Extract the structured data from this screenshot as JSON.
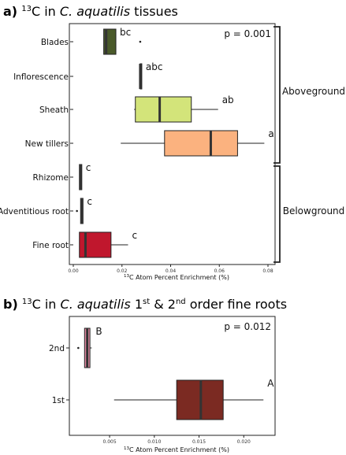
{
  "chart_data": [
    {
      "type": "boxplot",
      "panel_label": "a)",
      "title_sup": "13",
      "title_pre": "C in ",
      "title_species": "C. aquatilis",
      "title_post": " tissues",
      "xlabel_sup": "13",
      "xlabel": "C Atom Percent Enrichment (%)",
      "xlim": [
        0,
        0.08
      ],
      "xticks": [
        {
          "value": 0.0,
          "label": "0.00"
        },
        {
          "value": 0.02,
          "label": "0.02"
        },
        {
          "value": 0.04,
          "label": "0.04"
        },
        {
          "value": 0.06,
          "label": "0.06"
        },
        {
          "value": 0.08,
          "label": "0.08"
        }
      ],
      "p_value": "p = 0.001",
      "groups": [
        {
          "label": "Aboveground",
          "from": 0,
          "to": 3
        },
        {
          "label": "Belowground",
          "from": 4,
          "to": 6
        }
      ],
      "boxes": [
        {
          "category": "Blades",
          "min": 0.0125,
          "q1": 0.0125,
          "median": 0.0135,
          "q3": 0.0175,
          "max": 0.0175,
          "outliers": [
            0.0275
          ],
          "sig": "bc",
          "color": "#4a5a2a"
        },
        {
          "category": "Inflorescence",
          "min": 0.0275,
          "q1": 0.0275,
          "median": 0.0275,
          "q3": 0.0275,
          "max": 0.0275,
          "outliers": [],
          "sig": "abc",
          "color": "#333333"
        },
        {
          "category": "Sheath",
          "min": 0.025,
          "q1": 0.0255,
          "median": 0.0355,
          "q3": 0.0485,
          "max": 0.0595,
          "outliers": [],
          "sig": "ab",
          "color": "#d3e47a"
        },
        {
          "category": "New tillers",
          "min": 0.0195,
          "q1": 0.0375,
          "median": 0.0565,
          "q3": 0.0675,
          "max": 0.0785,
          "outliers": [],
          "sig": "a",
          "color": "#fbb27f"
        },
        {
          "category": "Rhizome",
          "min": 0.0025,
          "q1": 0.0025,
          "median": 0.003,
          "q3": 0.0035,
          "max": 0.0035,
          "outliers": [],
          "sig": "c",
          "color": "#333333"
        },
        {
          "category": "Adventitious root",
          "min": 0.003,
          "q1": 0.003,
          "median": 0.0035,
          "q3": 0.004,
          "max": 0.004,
          "outliers": [
            0.0015
          ],
          "sig": "c",
          "color": "#333333"
        },
        {
          "category": "Fine root",
          "min": 0.0025,
          "q1": 0.0025,
          "median": 0.005,
          "q3": 0.0155,
          "max": 0.0225,
          "outliers": [],
          "sig": "c",
          "color": "#c0172d"
        }
      ]
    },
    {
      "type": "boxplot",
      "panel_label": "b)",
      "title_sup": "13",
      "title_pre": "C in ",
      "title_species": "C. aquatilis",
      "title_post_1": " 1",
      "title_post_1_sup": "st",
      "title_post_2": " & 2",
      "title_post_2_sup": "nd",
      "title_post_3": " order fine roots",
      "xlabel_sup": "13",
      "xlabel": "C Atom Percent Enrichment (%)",
      "xlim": [
        0.0005,
        0.0235
      ],
      "xticks": [
        {
          "value": 0.005,
          "label": "0.005"
        },
        {
          "value": 0.01,
          "label": "0.010"
        },
        {
          "value": 0.015,
          "label": "0.015"
        },
        {
          "value": 0.02,
          "label": "0.020"
        }
      ],
      "p_value": "p = 0.012",
      "boxes": [
        {
          "category": "2nd",
          "min": 0.0022,
          "q1": 0.0022,
          "median": 0.0025,
          "q3": 0.0028,
          "max": 0.003,
          "outliers": [
            0.0015
          ],
          "sig": "B",
          "color": "#e88aa5"
        },
        {
          "category": "1st",
          "min": 0.0055,
          "q1": 0.0125,
          "median": 0.0152,
          "q3": 0.0177,
          "max": 0.0222,
          "outliers": [],
          "sig": "A",
          "color": "#7b2a22"
        }
      ]
    }
  ]
}
